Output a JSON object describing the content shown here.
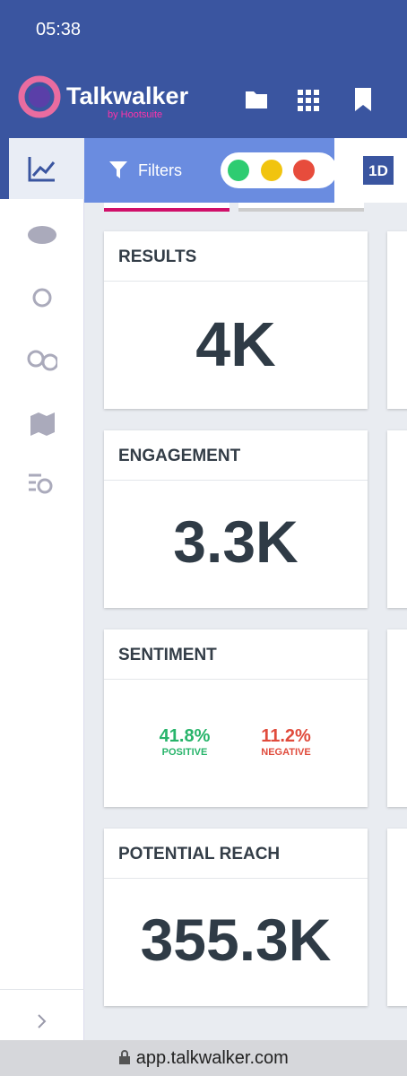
{
  "status_bar": {
    "time": "05:38"
  },
  "header": {
    "brand": "Talkwalker",
    "tagline": "by Hootsuite"
  },
  "filter_bar": {
    "label": "Filters",
    "period": "1D"
  },
  "cards": [
    {
      "title": "RESULTS",
      "value": "4K"
    },
    {
      "title": "ENGAGEMENT",
      "value": "3.3K"
    },
    {
      "title": "SENTIMENT",
      "positive": "41.8%",
      "positive_label": "POSITIVE",
      "negative": "11.2%",
      "negative_label": "NEGATIVE"
    },
    {
      "title": "POTENTIAL REACH",
      "value": "355.3K"
    }
  ],
  "browser": {
    "url": "app.talkwalker.com"
  }
}
